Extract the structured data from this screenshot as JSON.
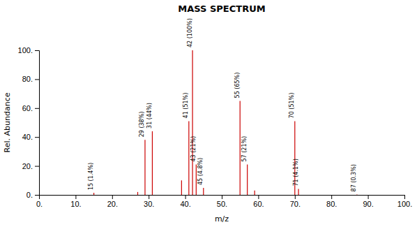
{
  "chart_data": {
    "type": "stem",
    "title": "MASS SPECTRUM",
    "xlabel": "m/z",
    "ylabel": "Rel. Abundance",
    "x": [
      15,
      27,
      29,
      31,
      39,
      41,
      42,
      43,
      45,
      55,
      57,
      59,
      70,
      71,
      87
    ],
    "values": [
      1.4,
      2.0,
      38,
      44,
      10,
      51,
      100,
      21,
      4.8,
      65,
      21,
      3.0,
      51,
      4.1,
      0.3
    ],
    "value_labels": [
      "15 (1.4%)",
      null,
      "29 (38%)",
      "31 (44%)",
      null,
      "41 (51%)",
      "42 (100%)",
      "43 (21%)",
      "45 (4.8%)",
      "55 (65%)",
      "57 (21%)",
      null,
      "70 (51%)",
      "71 (4.1%)",
      "87 (0.3%)"
    ],
    "color": "#cc0000",
    "xlim": [
      0,
      100
    ],
    "ylim": [
      0,
      100
    ],
    "xticks": [
      {
        "value": 0,
        "label": "0."
      },
      {
        "value": 10,
        "label": "10."
      },
      {
        "value": 20,
        "label": "20."
      },
      {
        "value": 30,
        "label": "30."
      },
      {
        "value": 40,
        "label": "40."
      },
      {
        "value": 50,
        "label": "50."
      },
      {
        "value": 60,
        "label": "60."
      },
      {
        "value": 70,
        "label": "70."
      },
      {
        "value": 80,
        "label": "80."
      },
      {
        "value": 90,
        "label": "90."
      },
      {
        "value": 100,
        "label": "100."
      }
    ],
    "yticks": [
      {
        "value": 0,
        "label": "0."
      },
      {
        "value": 20,
        "label": "20."
      },
      {
        "value": 40,
        "label": "40."
      },
      {
        "value": 60,
        "label": "60."
      },
      {
        "value": 80,
        "label": "80."
      },
      {
        "value": 100,
        "label": "100."
      }
    ]
  }
}
